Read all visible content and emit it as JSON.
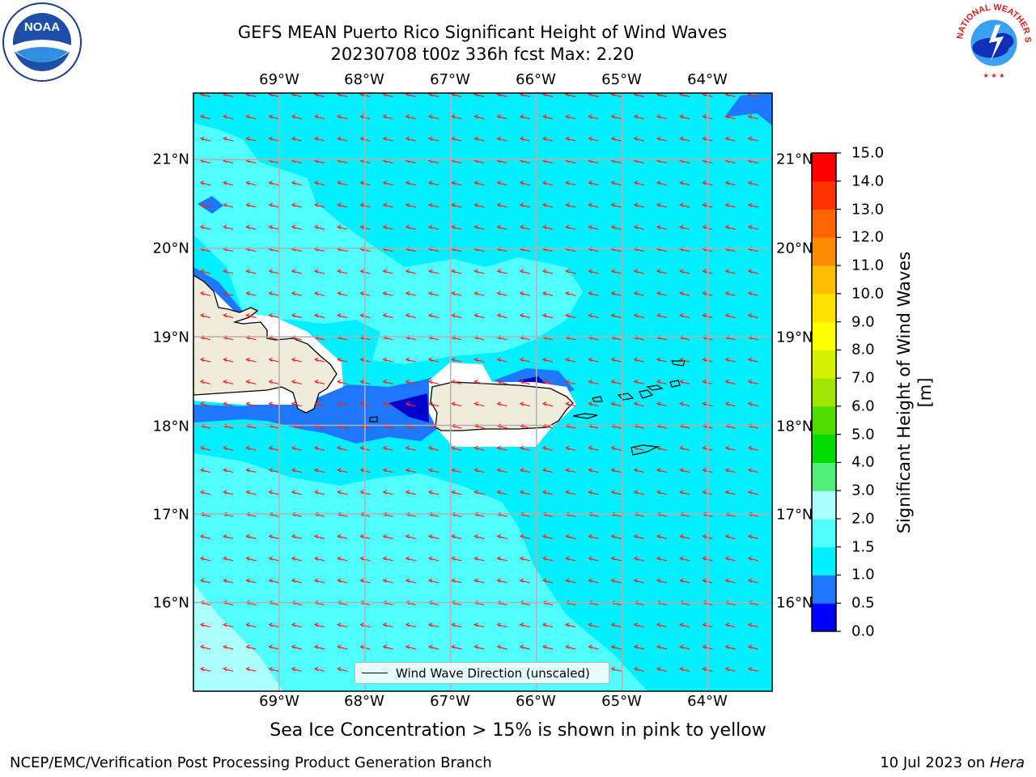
{
  "title_line1": "GEFS MEAN Puerto Rico Significant Height of Wind Waves",
  "title_line2": "20230708 t00z 336h fcst   Max: 2.20",
  "logos": {
    "left": {
      "name": "noaa-logo",
      "text": "NOAA",
      "ring_text": "NATIONAL OCEANIC AND ATMOSPHERIC ADMINISTRATION · U.S. DEPARTMENT OF COMMERCE"
    },
    "right": {
      "name": "nws-logo",
      "ring_text": "NATIONAL WEATHER SERVICE"
    }
  },
  "map": {
    "lon_labels": [
      "69°W",
      "68°W",
      "67°W",
      "66°W",
      "65°W",
      "64°W"
    ],
    "lon_values": [
      -69,
      -68,
      -67,
      -66,
      -65,
      -64
    ],
    "lat_labels": [
      "21°N",
      "20°N",
      "19°N",
      "18°N",
      "17°N",
      "16°N"
    ],
    "lat_values": [
      21,
      20,
      19,
      18,
      17,
      16
    ],
    "extent": {
      "lon_min": -70.0,
      "lon_max": -63.25,
      "lat_min": 15.0,
      "lat_max": 21.75
    },
    "arrow_color": "#ff2020",
    "coastline_color": "#000000",
    "land_color": "#efecdc",
    "grid_color": "#b0b0b0"
  },
  "legend": {
    "label": "Wind Wave Direction (unscaled)"
  },
  "colorbar": {
    "label": "Significant Height of Wind Waves [m]",
    "ticks": [
      "0.0",
      "0.5",
      "1.0",
      "1.5",
      "2.0",
      "3.0",
      "4.0",
      "5.0",
      "6.0",
      "7.0",
      "8.0",
      "9.0",
      "10.0",
      "11.0",
      "12.0",
      "13.0",
      "14.0",
      "15.0"
    ],
    "colors": [
      "#0000ff",
      "#1e78ff",
      "#00f0ff",
      "#50ffff",
      "#aaffff",
      "#50f078",
      "#00dc00",
      "#50dc00",
      "#a0e600",
      "#d2f000",
      "#ffff00",
      "#ffe100",
      "#ffbe00",
      "#ff8c00",
      "#ff6400",
      "#ff3200",
      "#ff0000"
    ]
  },
  "footer_note": "Sea Ice Concentration > 15% is shown in pink to yellow",
  "credit_left": "NCEP/EMC/Verification Post Processing Product Generation Branch",
  "credit_right_prefix": "10 Jul 2023 on ",
  "credit_right_host": "Hera"
}
